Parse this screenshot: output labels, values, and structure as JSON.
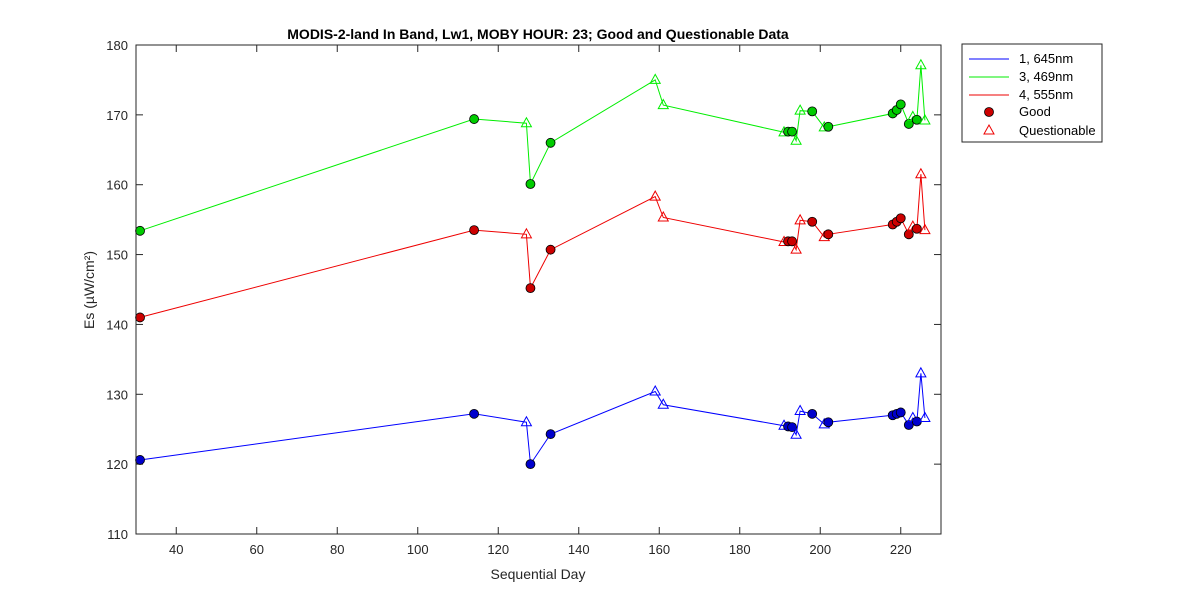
{
  "chart_data": {
    "type": "line",
    "title": "MODIS-2-land In Band,  Lw1, MOBY HOUR: 23;  Good and Questionable Data",
    "xlabel": "Sequential Day",
    "ylabel": "Es (µW/cm²)",
    "xlim": [
      30,
      230
    ],
    "ylim": [
      110,
      180
    ],
    "xticks": [
      40,
      60,
      80,
      100,
      120,
      140,
      160,
      180,
      200,
      220
    ],
    "yticks": [
      110,
      120,
      130,
      140,
      150,
      160,
      170,
      180
    ],
    "x": [
      31,
      114,
      127,
      128,
      133,
      159,
      161,
      191,
      192,
      193,
      194,
      195,
      198,
      201,
      202,
      218,
      219,
      220,
      222,
      223,
      224,
      225,
      226
    ],
    "quality": [
      "Good",
      "Good",
      "Questionable",
      "Good",
      "Good",
      "Questionable",
      "Questionable",
      "Questionable",
      "Good",
      "Good",
      "Questionable",
      "Questionable",
      "Good",
      "Questionable",
      "Good",
      "Good",
      "Good",
      "Good",
      "Good",
      "Questionable",
      "Good",
      "Questionable",
      "Questionable"
    ],
    "series": [
      {
        "name": "1, 645nm",
        "color": "#0000ff",
        "fill": "#0000cc",
        "values": [
          120.6,
          127.2,
          126.0,
          120.0,
          124.3,
          130.4,
          128.5,
          125.5,
          125.4,
          125.3,
          124.2,
          127.6,
          127.2,
          125.7,
          126.0,
          127.0,
          127.2,
          127.4,
          125.6,
          126.6,
          126.1,
          133.0,
          126.6
        ]
      },
      {
        "name": "3, 469nm",
        "color": "#00ee00",
        "fill": "#00cc00",
        "values": [
          153.4,
          169.4,
          168.8,
          160.1,
          166.0,
          175.0,
          171.4,
          167.5,
          167.6,
          167.6,
          166.3,
          170.6,
          170.5,
          168.2,
          168.3,
          170.2,
          170.7,
          171.5,
          168.7,
          169.7,
          169.3,
          177.1,
          169.2
        ]
      },
      {
        "name": "4, 555nm",
        "color": "#ee0000",
        "fill": "#cc0000",
        "values": [
          141.0,
          153.5,
          152.9,
          145.2,
          150.7,
          158.3,
          155.3,
          151.8,
          151.9,
          151.9,
          150.7,
          154.9,
          154.7,
          152.5,
          152.9,
          154.3,
          154.7,
          155.2,
          152.9,
          154.0,
          153.7,
          161.5,
          153.5
        ]
      }
    ],
    "legend": {
      "position": "outside-right",
      "entries": [
        "1, 645nm",
        "3, 469nm",
        "4, 555nm",
        "Good",
        "Questionable"
      ],
      "good_label": "Good",
      "questionable_label": "Questionable"
    },
    "grid": false
  }
}
